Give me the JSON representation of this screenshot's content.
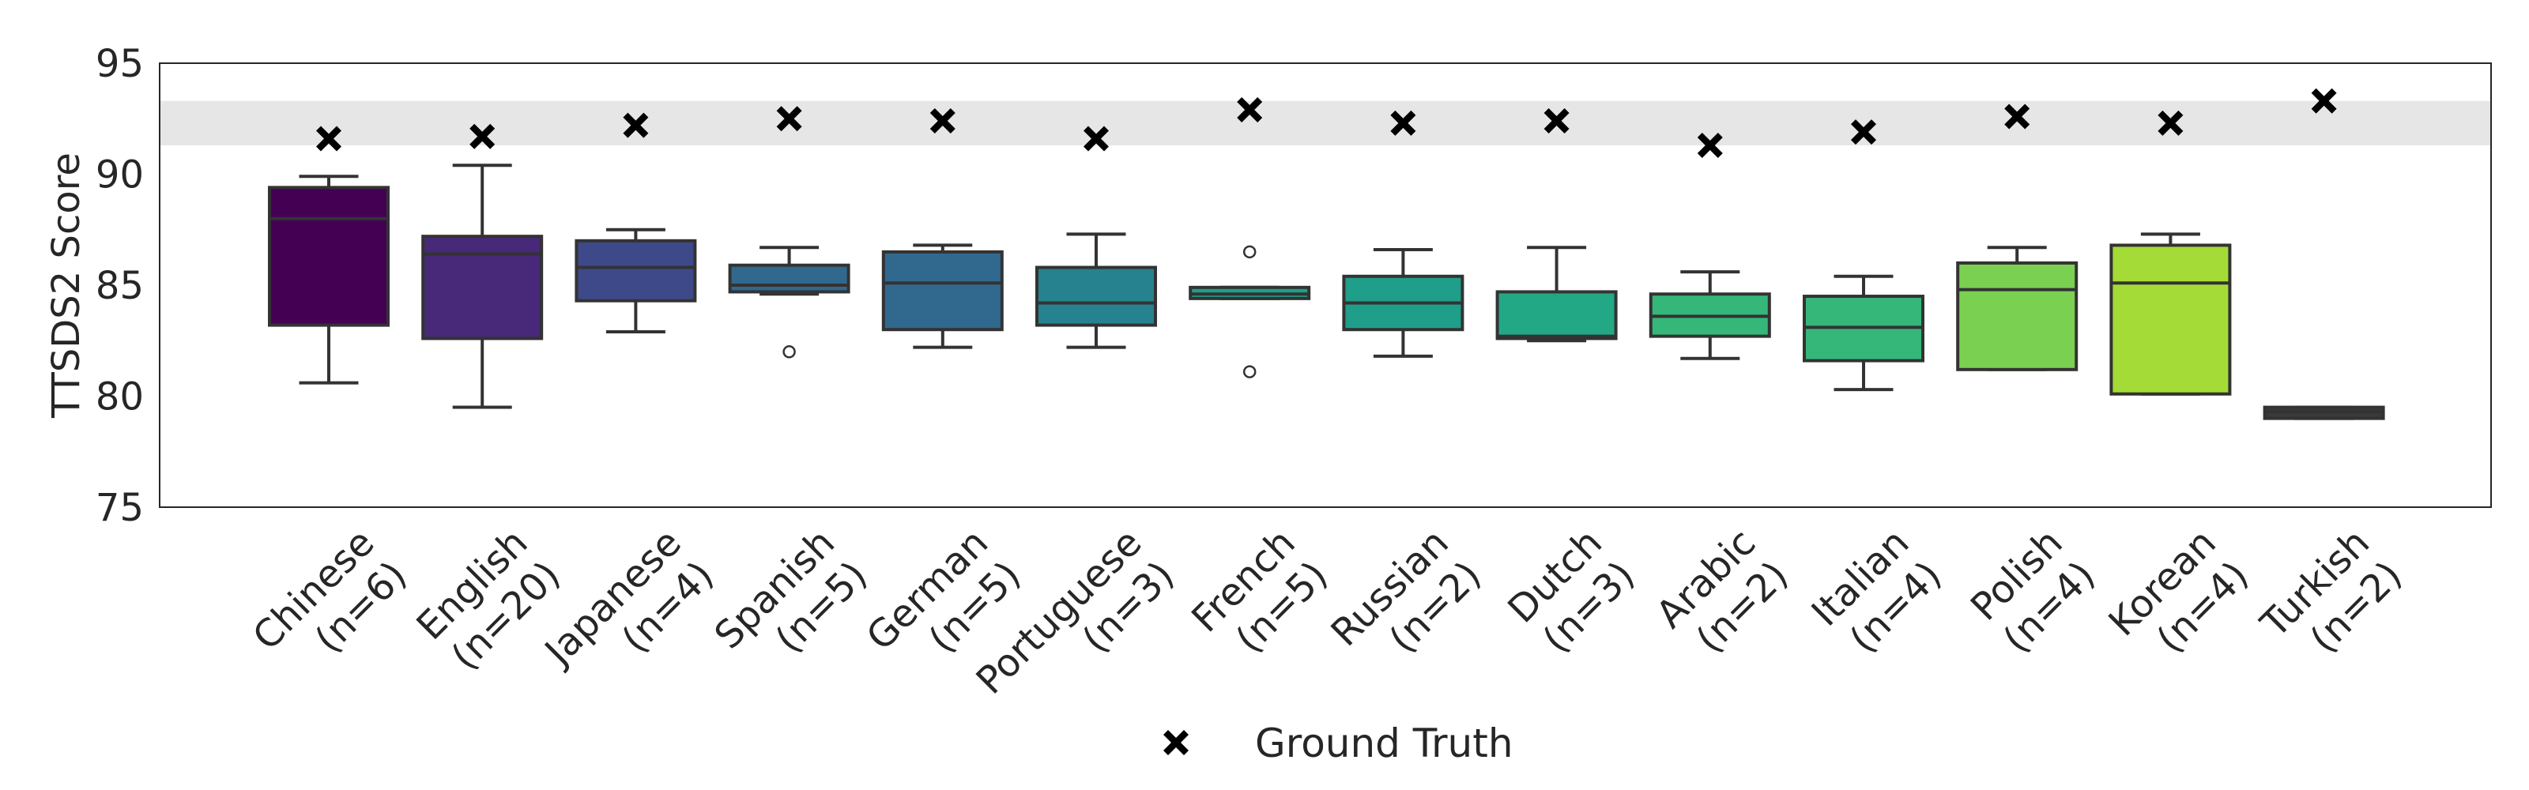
{
  "chart_data": {
    "type": "box",
    "ylabel": "TTSDS2 Score",
    "ylim": [
      75,
      95
    ],
    "yticks": [
      75,
      80,
      85,
      90,
      95
    ],
    "ground_truth_band": [
      91.3,
      93.3
    ],
    "legend": {
      "entries": [
        "Ground Truth"
      ],
      "placement": "bottom-center"
    },
    "categories": [
      {
        "name": "Chinese",
        "n": "(n=6)",
        "color": "#440154",
        "whisker_low": 80.6,
        "q1": 83.2,
        "median": 88.0,
        "q3": 89.4,
        "whisker_high": 89.9,
        "outliers": [],
        "ground_truth": 91.6
      },
      {
        "name": "English",
        "n": "(n=20)",
        "color": "#482878",
        "whisker_low": 79.5,
        "q1": 82.6,
        "median": 86.4,
        "q3": 87.2,
        "whisker_high": 90.4,
        "outliers": [],
        "ground_truth": 91.7
      },
      {
        "name": "Japanese",
        "n": "(n=4)",
        "color": "#3e4989",
        "whisker_low": 82.9,
        "q1": 84.3,
        "median": 85.8,
        "q3": 87.0,
        "whisker_high": 87.5,
        "outliers": [],
        "ground_truth": 92.2
      },
      {
        "name": "Spanish",
        "n": "(n=5)",
        "color": "#31688e",
        "whisker_low": 84.6,
        "q1": 84.7,
        "median": 85.0,
        "q3": 85.9,
        "whisker_high": 86.7,
        "outliers": [
          82.0
        ],
        "ground_truth": 92.5
      },
      {
        "name": "German",
        "n": "(n=5)",
        "color": "#31688e",
        "whisker_low": 82.2,
        "q1": 83.0,
        "median": 85.1,
        "q3": 86.5,
        "whisker_high": 86.8,
        "outliers": [],
        "ground_truth": 92.4
      },
      {
        "name": "Portuguese",
        "n": "(n=3)",
        "color": "#26828e",
        "whisker_low": 82.2,
        "q1": 83.2,
        "median": 84.2,
        "q3": 85.8,
        "whisker_high": 87.3,
        "outliers": [],
        "ground_truth": 91.6
      },
      {
        "name": "French",
        "n": "(n=5)",
        "color": "#1f9e89",
        "whisker_low": 84.4,
        "q1": 84.4,
        "median": 84.6,
        "q3": 84.9,
        "whisker_high": 84.9,
        "outliers": [
          86.5,
          81.1
        ],
        "ground_truth": 92.9
      },
      {
        "name": "Russian",
        "n": "(n=2)",
        "color": "#1f9e89",
        "whisker_low": 81.8,
        "q1": 83.0,
        "median": 84.2,
        "q3": 85.4,
        "whisker_high": 86.6,
        "outliers": [],
        "ground_truth": 92.3
      },
      {
        "name": "Dutch",
        "n": "(n=3)",
        "color": "#22a884",
        "whisker_low": 82.5,
        "q1": 82.6,
        "median": 82.7,
        "q3": 84.7,
        "whisker_high": 86.7,
        "outliers": [],
        "ground_truth": 92.4
      },
      {
        "name": "Arabic",
        "n": "(n=2)",
        "color": "#35b779",
        "whisker_low": 81.7,
        "q1": 82.7,
        "median": 83.6,
        "q3": 84.6,
        "whisker_high": 85.6,
        "outliers": [],
        "ground_truth": 91.3
      },
      {
        "name": "Italian",
        "n": "(n=4)",
        "color": "#35b779",
        "whisker_low": 80.3,
        "q1": 81.6,
        "median": 83.1,
        "q3": 84.5,
        "whisker_high": 85.4,
        "outliers": [],
        "ground_truth": 91.9
      },
      {
        "name": "Polish",
        "n": "(n=4)",
        "color": "#7ad151",
        "whisker_low": 81.2,
        "q1": 81.2,
        "median": 84.8,
        "q3": 86.0,
        "whisker_high": 86.7,
        "outliers": [],
        "ground_truth": 92.6
      },
      {
        "name": "Korean",
        "n": "(n=4)",
        "color": "#a5db36",
        "whisker_low": 80.1,
        "q1": 80.1,
        "median": 85.1,
        "q3": 86.8,
        "whisker_high": 87.3,
        "outliers": [],
        "ground_truth": 92.3
      },
      {
        "name": "Turkish",
        "n": "(n=2)",
        "color": "#3a3a3a",
        "whisker_low": 79.0,
        "q1": 79.0,
        "median": 79.3,
        "q3": 79.5,
        "whisker_high": 79.5,
        "outliers": [],
        "ground_truth": 93.3
      }
    ]
  }
}
